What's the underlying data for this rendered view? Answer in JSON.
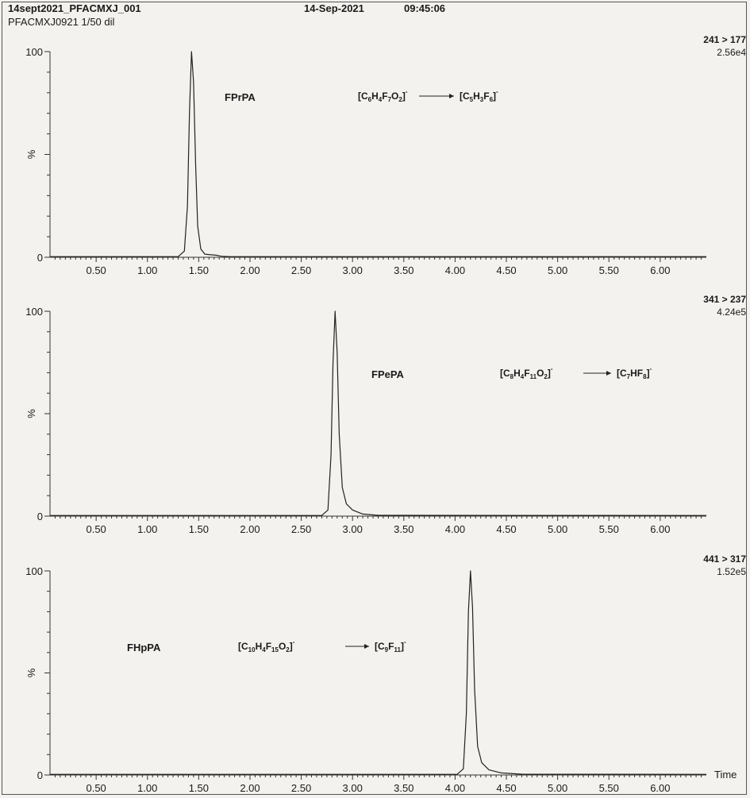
{
  "header": {
    "sample_id": "14sept2021_PFACMXJ_001",
    "description": "PFACMXJ0921 1/50 dil",
    "date": "14-Sep-2021",
    "time": "09:45:06"
  },
  "chart_data": [
    {
      "type": "line",
      "title": "",
      "xlabel": "",
      "ylabel": "%",
      "xlim": [
        0.05,
        6.45
      ],
      "ylim": [
        0,
        100
      ],
      "x_ticks": [
        "0.50",
        "1.00",
        "1.50",
        "2.00",
        "2.50",
        "3.00",
        "3.50",
        "4.00",
        "4.50",
        "5.00",
        "5.50",
        "6.00"
      ],
      "y_ticks": [
        "0",
        "100"
      ],
      "grid": false,
      "transition": "241 > 177",
      "intensity": "2.56e4",
      "compound": "FPrPA",
      "precursor_ion": [
        {
          "t": "[C"
        },
        {
          "s": "6"
        },
        {
          "t": "H"
        },
        {
          "s": "4"
        },
        {
          "t": "F"
        },
        {
          "s": "7"
        },
        {
          "t": "O"
        },
        {
          "s": "2"
        },
        {
          "t": "]"
        },
        {
          "sup": "-"
        }
      ],
      "product_ion": [
        {
          "t": "[C"
        },
        {
          "s": "5"
        },
        {
          "t": "H"
        },
        {
          "s": "3"
        },
        {
          "t": "F"
        },
        {
          "s": "6"
        },
        {
          "t": "]"
        },
        {
          "sup": "-"
        }
      ],
      "series": [
        {
          "x": [
            0.05,
            1.3,
            1.36,
            1.39,
            1.41,
            1.43,
            1.45,
            1.47,
            1.49,
            1.52,
            1.56,
            1.62,
            1.67,
            1.72,
            1.8,
            6.45
          ],
          "y": [
            0.3,
            0.3,
            3,
            25,
            70,
            100,
            85,
            45,
            15,
            4,
            1.5,
            1.2,
            1,
            0.5,
            0.3,
            0.3
          ]
        }
      ]
    },
    {
      "type": "line",
      "title": "",
      "xlabel": "",
      "ylabel": "%",
      "xlim": [
        0.05,
        6.45
      ],
      "ylim": [
        0,
        100
      ],
      "x_ticks": [
        "0.50",
        "1.00",
        "1.50",
        "2.00",
        "2.50",
        "3.00",
        "3.50",
        "4.00",
        "4.50",
        "5.00",
        "5.50",
        "6.00"
      ],
      "y_ticks": [
        "0",
        "100"
      ],
      "grid": false,
      "transition": "341 > 237",
      "intensity": "4.24e5",
      "compound": "FPePA",
      "precursor_ion": [
        {
          "t": "[C"
        },
        {
          "s": "8"
        },
        {
          "t": "H"
        },
        {
          "s": "4"
        },
        {
          "t": "F"
        },
        {
          "s": "11"
        },
        {
          "t": "O"
        },
        {
          "s": "2"
        },
        {
          "t": "]"
        },
        {
          "sup": "-"
        }
      ],
      "product_ion": [
        {
          "t": "[C"
        },
        {
          "s": "7"
        },
        {
          "t": "HF"
        },
        {
          "s": "8"
        },
        {
          "t": "]"
        },
        {
          "sup": "-"
        }
      ],
      "series": [
        {
          "x": [
            0.05,
            2.7,
            2.76,
            2.79,
            2.81,
            2.83,
            2.85,
            2.87,
            2.9,
            2.94,
            3.0,
            3.1,
            3.25,
            6.45
          ],
          "y": [
            0.3,
            0.3,
            3,
            30,
            75,
            100,
            80,
            40,
            14,
            6,
            3,
            1,
            0.4,
            0.3
          ]
        }
      ]
    },
    {
      "type": "line",
      "title": "",
      "xlabel": "Time",
      "ylabel": "%",
      "xlim": [
        0.05,
        6.45
      ],
      "ylim": [
        0,
        100
      ],
      "x_ticks": [
        "0.50",
        "1.00",
        "1.50",
        "2.00",
        "2.50",
        "3.00",
        "3.50",
        "4.00",
        "4.50",
        "5.00",
        "5.50",
        "6.00"
      ],
      "y_ticks": [
        "0",
        "100"
      ],
      "grid": false,
      "transition": "441 > 317",
      "intensity": "1.52e5",
      "compound": "FHpPA",
      "precursor_ion": [
        {
          "t": "[C"
        },
        {
          "s": "10"
        },
        {
          "t": "H"
        },
        {
          "s": "4"
        },
        {
          "t": "F"
        },
        {
          "s": "15"
        },
        {
          "t": "O"
        },
        {
          "s": "2"
        },
        {
          "t": "]"
        },
        {
          "sup": "-"
        }
      ],
      "product_ion": [
        {
          "t": "[C"
        },
        {
          "s": "9"
        },
        {
          "t": "F"
        },
        {
          "s": "11"
        },
        {
          "t": "]"
        },
        {
          "sup": "-"
        }
      ],
      "series": [
        {
          "x": [
            0.05,
            4.02,
            4.08,
            4.11,
            4.13,
            4.15,
            4.17,
            4.19,
            4.22,
            4.26,
            4.33,
            4.45,
            4.65,
            6.45
          ],
          "y": [
            0.3,
            0.3,
            3,
            30,
            80,
            100,
            82,
            42,
            14,
            6,
            2.5,
            1,
            0.4,
            0.3
          ]
        }
      ]
    }
  ]
}
